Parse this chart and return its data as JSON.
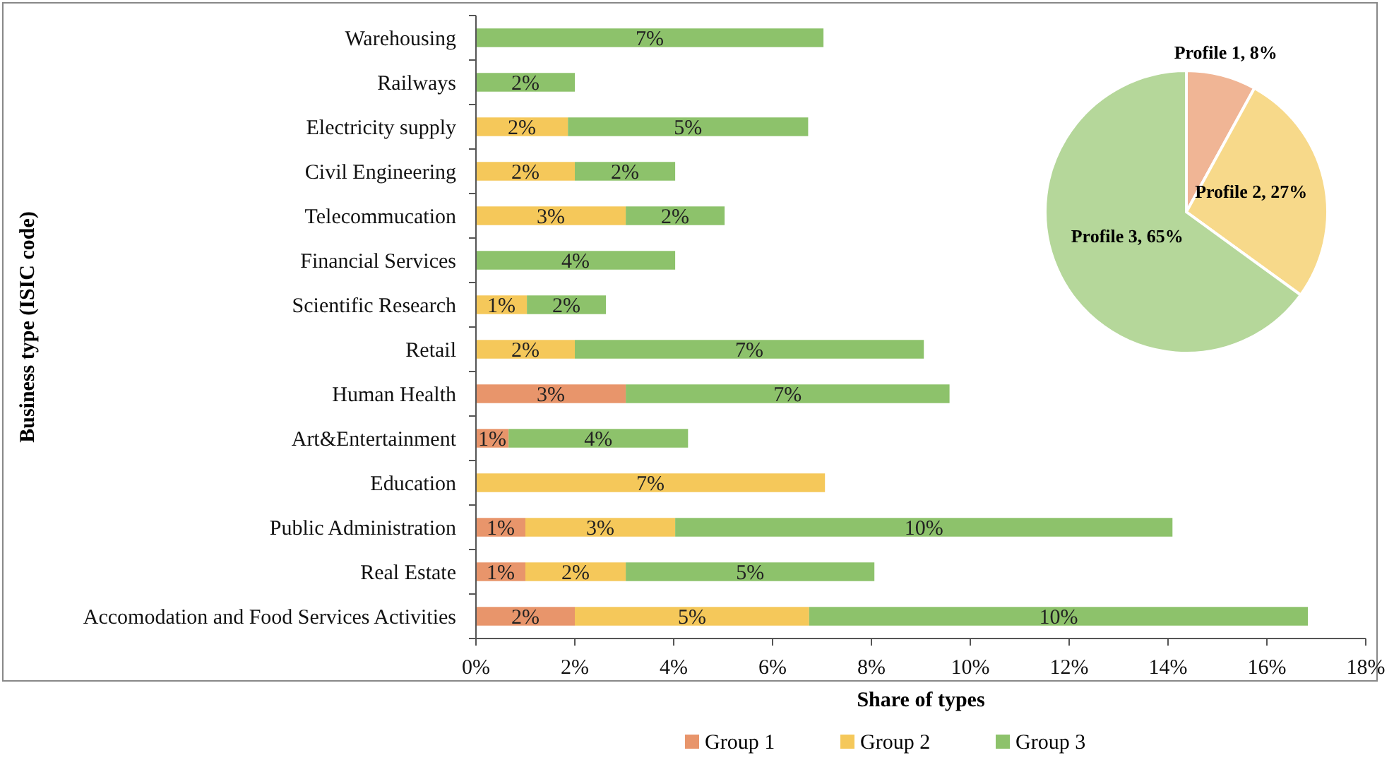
{
  "chart_data": [
    {
      "type": "bar",
      "orientation": "horizontal",
      "stacked": true,
      "xlabel": "Share of types",
      "ylabel": "Business type (ISIC code)",
      "legend": "bottom",
      "categories": [
        "Warehousing",
        "Railways",
        "Electricity supply",
        "Civil Engineering",
        "Telecommucation",
        "Financial Services",
        "Scientific Research",
        "Retail",
        "Human Health",
        "Art&Entertainment",
        "Education",
        "Public Administration",
        "Real Estate",
        "Accomodation and Food Services Activities"
      ],
      "xlim": [
        0,
        18
      ],
      "xticks": [
        {
          "value": 0,
          "label": "0%"
        },
        {
          "value": 2,
          "label": "2%"
        },
        {
          "value": 4,
          "label": "4%"
        },
        {
          "value": 6,
          "label": "6%"
        },
        {
          "value": 8,
          "label": "8%"
        },
        {
          "value": 10,
          "label": "10%"
        },
        {
          "value": 12,
          "label": "12%"
        },
        {
          "value": 14,
          "label": "14%"
        },
        {
          "value": 16,
          "label": "16%"
        },
        {
          "value": 18,
          "label": "18%"
        }
      ],
      "series": [
        {
          "name": "Group 1",
          "color": "#e8956b",
          "values": [
            null,
            null,
            null,
            null,
            null,
            null,
            null,
            null,
            3.03,
            0.66,
            null,
            1.0,
            1.0,
            2.0
          ],
          "value_labels": [
            null,
            null,
            null,
            null,
            null,
            null,
            null,
            null,
            "3%",
            "1%",
            null,
            "1%",
            "1%",
            "2%"
          ]
        },
        {
          "name": "Group 2",
          "color": "#f5c85a",
          "values": [
            null,
            null,
            1.86,
            2.0,
            3.03,
            null,
            1.03,
            2.0,
            null,
            null,
            7.06,
            3.03,
            2.03,
            4.74
          ],
          "value_labels": [
            null,
            null,
            "2%",
            "2%",
            "3%",
            null,
            "1%",
            "2%",
            null,
            null,
            "7%",
            "3%",
            "2%",
            "5%"
          ]
        },
        {
          "name": "Group 3",
          "color": "#8dc26b",
          "values": [
            7.03,
            2.0,
            4.86,
            2.03,
            2.0,
            4.03,
            1.6,
            7.06,
            6.55,
            3.63,
            null,
            10.06,
            5.03,
            10.09
          ],
          "value_labels": [
            "7%",
            "2%",
            "5%",
            "2%",
            "2%",
            "4%",
            "2%",
            "7%",
            "7%",
            "4%",
            null,
            "10%",
            "5%",
            "10%"
          ]
        }
      ]
    },
    {
      "type": "pie",
      "categories": [
        "Profile 1",
        "Profile 2",
        "Profile 3"
      ],
      "values": [
        8,
        27,
        65
      ],
      "colors": [
        "#f0b595",
        "#f7d98a",
        "#b5d79a"
      ],
      "value_labels": [
        "8%",
        "27%",
        "65%"
      ]
    }
  ]
}
